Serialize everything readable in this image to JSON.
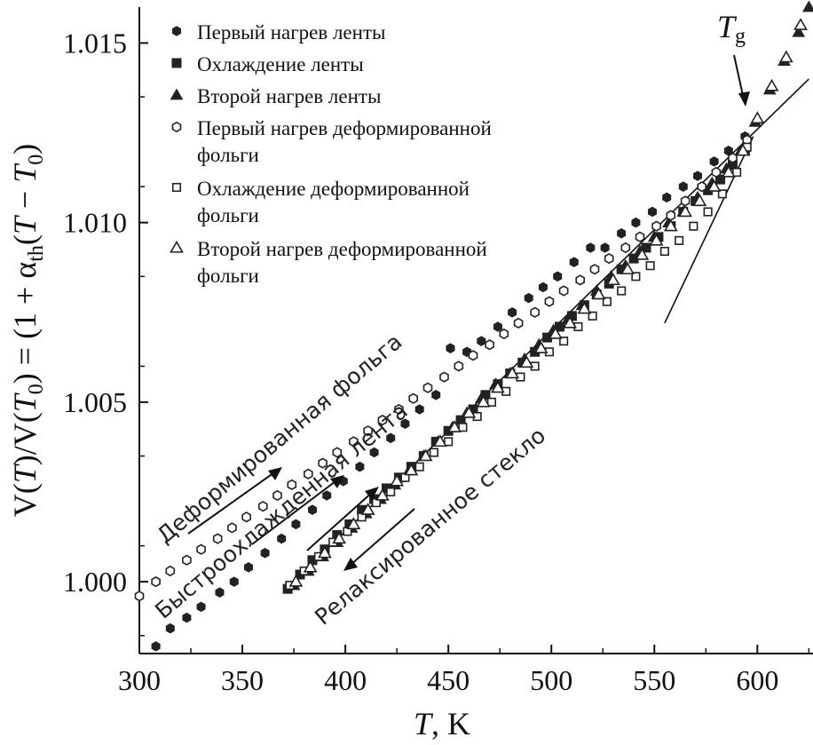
{
  "chart_data": {
    "type": "scatter",
    "xlim": [
      300,
      627
    ],
    "ylim": [
      0.998,
      1.016
    ],
    "x_ticks": [
      "300",
      "350",
      "400",
      "450",
      "500",
      "550",
      "600"
    ],
    "y_ticks": [
      "1.000",
      "1.005",
      "1.010",
      "1.015"
    ],
    "xlabel": {
      "italic": "T",
      "rest": ", K"
    },
    "ylabel": "V(T)/V(T0) = (1 + αth(T − T0)",
    "legend": [
      {
        "marker": "filled-hexagon",
        "label_lines": [
          "Первый нагрев ленты"
        ]
      },
      {
        "marker": "filled-square",
        "label_lines": [
          "Охлаждение ленты"
        ]
      },
      {
        "marker": "filled-triangle",
        "label_lines": [
          "Второй нагрев ленты"
        ]
      },
      {
        "marker": "open-hexagon",
        "label_lines": [
          "Первый нагрев деформированной",
          "фольги"
        ]
      },
      {
        "marker": "open-square",
        "label_lines": [
          "Охлаждение деформированной",
          "фольги"
        ]
      },
      {
        "marker": "open-triangle",
        "label_lines": [
          "Второй нагрев деформированной",
          "фольги"
        ]
      }
    ],
    "annotations": {
      "deformed_foil": "Деформированная фольга",
      "quenched_ribbon": "Быстроохлажденная лента",
      "relaxed_glass": "Релаксированное стекло",
      "tg": "T",
      "tg_sub": "g"
    },
    "fit_lines": [
      {
        "name": "glass",
        "x": [
          375,
          625
        ],
        "y": [
          1.0,
          1.014
        ]
      },
      {
        "name": "liquid",
        "x": [
          555,
          598
        ],
        "y": [
          1.0072,
          1.0124
        ]
      }
    ],
    "series": [
      {
        "name": "Первый нагрев ленты",
        "marker": "filled-hexagon",
        "x": [
          308,
          315,
          323,
          330,
          339,
          346,
          353,
          361,
          369,
          376,
          384,
          391,
          399,
          407,
          414,
          422,
          429,
          436,
          444,
          451,
          459,
          466,
          474,
          481,
          489,
          496,
          503,
          511,
          519,
          526,
          534,
          541,
          549,
          556,
          564,
          571,
          579,
          586,
          594
        ],
        "y": [
          0.9982,
          0.9987,
          0.999,
          0.9993,
          0.9997,
          1.0,
          1.0004,
          1.0008,
          1.0012,
          1.0016,
          1.002,
          1.0024,
          1.0028,
          1.0032,
          1.0036,
          1.004,
          1.0044,
          1.0048,
          1.0052,
          1.0065,
          1.0064,
          1.0067,
          1.0071,
          1.0075,
          1.0079,
          1.0082,
          1.0085,
          1.0089,
          1.0093,
          1.0093,
          1.0097,
          1.01,
          1.0103,
          1.0107,
          1.011,
          1.0113,
          1.0117,
          1.012,
          1.0124
        ]
      },
      {
        "name": "Охлаждение ленты",
        "marker": "filled-square",
        "x": [
          372,
          378,
          384,
          390,
          396,
          402,
          408,
          414,
          420,
          426,
          432,
          438,
          444,
          450,
          456,
          462,
          468,
          474,
          480,
          486,
          492,
          498,
          504,
          510,
          516,
          522,
          528,
          534,
          540,
          546,
          552,
          558,
          564,
          570,
          576,
          582,
          588,
          594
        ],
        "y": [
          0.9998,
          1.0002,
          1.0006,
          1.0009,
          1.0013,
          1.0016,
          1.002,
          1.0023,
          1.0026,
          1.0029,
          1.0032,
          1.0035,
          1.0039,
          1.0042,
          1.0045,
          1.0048,
          1.0052,
          1.0055,
          1.0058,
          1.0061,
          1.0064,
          1.0068,
          1.0071,
          1.0074,
          1.0077,
          1.008,
          1.0083,
          1.0087,
          1.009,
          1.0093,
          1.0096,
          1.0099,
          1.0103,
          1.0106,
          1.0109,
          1.0112,
          1.0116,
          1.012
        ]
      },
      {
        "name": "Второй нагрев ленты",
        "marker": "filled-triangle",
        "x": [
          375,
          382,
          389,
          396,
          403,
          410,
          417,
          424,
          431,
          438,
          445,
          452,
          459,
          466,
          473,
          480,
          487,
          494,
          501,
          508,
          515,
          522,
          529,
          536,
          543,
          550,
          557,
          564,
          571,
          578,
          585,
          592,
          599,
          606,
          613,
          620,
          625
        ],
        "y": [
          0.9999,
          1.0003,
          1.0007,
          1.0011,
          1.0015,
          1.0019,
          1.0023,
          1.0027,
          1.0031,
          1.0035,
          1.0039,
          1.0043,
          1.0047,
          1.0051,
          1.0055,
          1.0058,
          1.0062,
          1.0066,
          1.007,
          1.0073,
          1.0077,
          1.0081,
          1.0085,
          1.0088,
          1.0092,
          1.0096,
          1.01,
          1.0103,
          1.0107,
          1.0111,
          1.0115,
          1.012,
          1.0128,
          1.0137,
          1.0145,
          1.0153,
          1.016
        ]
      },
      {
        "name": "Первый нагрев деформированной фольги",
        "marker": "open-hexagon",
        "x": [
          300,
          308,
          315,
          323,
          330,
          338,
          345,
          352,
          360,
          367,
          374,
          382,
          389,
          396,
          404,
          411,
          418,
          426,
          433,
          440,
          448,
          455,
          462,
          470,
          477,
          484,
          492,
          499,
          506,
          514,
          521,
          528,
          536,
          543,
          551,
          558,
          565,
          573,
          580,
          588,
          595
        ],
        "y": [
          0.9996,
          1.0,
          1.0003,
          1.0006,
          1.0009,
          1.0012,
          1.0015,
          1.0018,
          1.0021,
          1.0024,
          1.0027,
          1.003,
          1.0033,
          1.0036,
          1.0039,
          1.0042,
          1.0045,
          1.0048,
          1.0051,
          1.0054,
          1.0057,
          1.006,
          1.0063,
          1.0066,
          1.0069,
          1.0072,
          1.0075,
          1.0078,
          1.0081,
          1.0084,
          1.0087,
          1.009,
          1.0093,
          1.0096,
          1.0099,
          1.0102,
          1.0106,
          1.011,
          1.0114,
          1.0118,
          1.0123
        ]
      },
      {
        "name": "Охлаждение деформированной фольги",
        "marker": "open-square",
        "x": [
          373,
          380,
          387,
          394,
          401,
          408,
          415,
          422,
          429,
          436,
          443,
          450,
          457,
          464,
          471,
          478,
          485,
          492,
          499,
          506,
          513,
          520,
          527,
          534,
          541,
          548,
          555,
          562,
          569,
          576,
          583,
          590,
          595
        ],
        "y": [
          0.9999,
          1.0003,
          1.0007,
          1.0011,
          1.0014,
          1.0018,
          1.0022,
          1.0025,
          1.0029,
          1.0032,
          1.0036,
          1.0039,
          1.0043,
          1.0046,
          1.005,
          1.0053,
          1.0057,
          1.006,
          1.0064,
          1.0067,
          1.0071,
          1.0074,
          1.0078,
          1.0081,
          1.0085,
          1.0088,
          1.0092,
          1.0095,
          1.0099,
          1.0103,
          1.0108,
          1.0114,
          1.0121
        ]
      },
      {
        "name": "Второй нагрев деформированной фольги",
        "marker": "open-triangle",
        "x": [
          376,
          383,
          390,
          397,
          404,
          411,
          418,
          425,
          432,
          439,
          446,
          453,
          460,
          467,
          474,
          481,
          488,
          495,
          502,
          509,
          516,
          523,
          530,
          537,
          544,
          551,
          558,
          565,
          572,
          579,
          586,
          593,
          600,
          607,
          614,
          621
        ],
        "y": [
          1.0,
          1.0004,
          1.0008,
          1.0012,
          1.0016,
          1.002,
          1.0024,
          1.0028,
          1.0031,
          1.0035,
          1.0039,
          1.0043,
          1.0047,
          1.005,
          1.0054,
          1.0058,
          1.0061,
          1.0065,
          1.0069,
          1.0072,
          1.0076,
          1.008,
          1.0084,
          1.0087,
          1.0091,
          1.0095,
          1.0099,
          1.0103,
          1.0106,
          1.011,
          1.0114,
          1.012,
          1.0129,
          1.0138,
          1.0146,
          1.0155
        ]
      }
    ]
  }
}
